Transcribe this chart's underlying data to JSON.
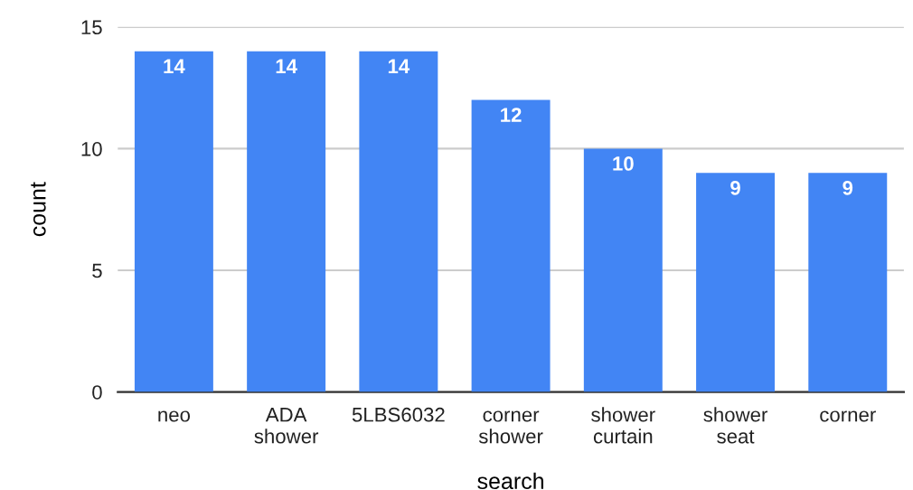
{
  "chart_data": {
    "type": "bar",
    "xlabel": "search",
    "ylabel": "count",
    "categories": [
      "neo",
      "ADA shower",
      "5LBS6032",
      "corner shower",
      "shower curtain",
      "shower seat",
      "corner"
    ],
    "values": [
      14,
      14,
      14,
      12,
      10,
      9,
      9
    ],
    "color": "#4285f4",
    "ylim": [
      0,
      15
    ],
    "yticks": [
      0,
      5,
      10,
      15
    ],
    "grid": "y",
    "data_labels": true,
    "legend": false
  }
}
